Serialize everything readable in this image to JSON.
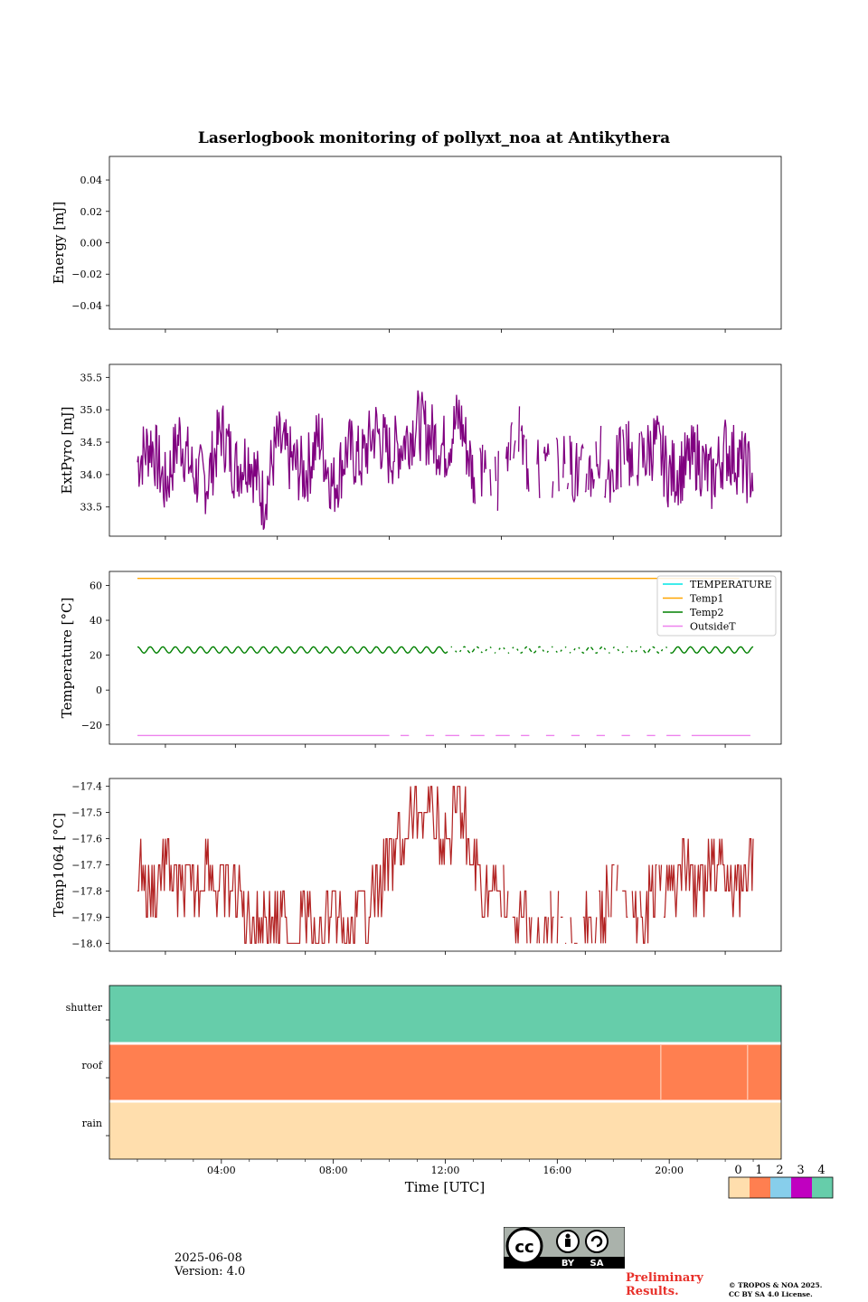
{
  "title": "Laserlogbook monitoring of pollyxt_noa at Antikythera",
  "xlabel": "Time [UTC]",
  "xticks": [
    "04:00",
    "08:00",
    "12:00",
    "16:00",
    "20:00"
  ],
  "date": "2025-06-08",
  "version": "Version: 4.0",
  "preliminary": [
    "Preliminary",
    "Results."
  ],
  "copyright": [
    "© TROPOS & NOA 2025.",
    "CC BY SA 4.0 License."
  ],
  "cc_badge": {
    "left": "BY",
    "right": "SA"
  },
  "colors": {
    "energy": "#800080",
    "extpyro": "#800080",
    "temperature": "#00e5e5",
    "temp1": "#ffa500",
    "temp2": "#008000",
    "outsidet": "#ee82ee",
    "temp1064": "#b22222",
    "status": [
      "#ffdead",
      "#ff7f50",
      "#87ceeb",
      "#c000c0",
      "#66cdaa"
    ]
  },
  "status_scale": [
    "0",
    "1",
    "2",
    "3",
    "4"
  ],
  "chart_data": [
    {
      "type": "line",
      "ylabel": "Energy [mJ]",
      "yticks": [
        "0.04",
        "0.02",
        "0.00",
        "−0.02",
        "−0.04"
      ],
      "ylim": [
        -0.055,
        0.055
      ],
      "series": []
    },
    {
      "type": "line",
      "ylabel": "ExtPyro [mJ]",
      "yticks": [
        "35.5",
        "35.0",
        "34.5",
        "34.0",
        "33.5"
      ],
      "ylim": [
        33.05,
        35.7
      ],
      "x_hours": [
        1.0,
        1.5,
        2.0,
        2.5,
        3.0,
        3.5,
        4.0,
        4.5,
        5.0,
        5.5,
        6.0,
        6.5,
        7.0,
        7.5,
        8.0,
        8.5,
        9.0,
        9.5,
        10.0,
        10.5,
        11.0,
        11.5,
        12.0,
        12.5,
        13.0,
        13.5,
        14.0,
        14.5,
        15.0,
        15.5,
        16.0,
        16.5,
        17.0,
        17.5,
        18.0,
        18.5,
        19.0,
        19.5,
        20.0,
        20.5,
        21.0,
        21.5,
        22.0,
        22.5,
        23.0
      ],
      "series": [
        {
          "name": "ExtPyro",
          "values": [
            34.2,
            34.5,
            33.8,
            34.6,
            34.0,
            33.9,
            34.7,
            34.1,
            34.3,
            33.6,
            34.5,
            34.2,
            34.0,
            34.6,
            33.8,
            34.4,
            34.2,
            34.7,
            34.3,
            34.5,
            34.8,
            34.6,
            34.4,
            34.9,
            34.0,
            34.2,
            33.9,
            34.7,
            34.1,
            34.0,
            34.2,
            34.1,
            33.9,
            34.3,
            34.0,
            34.4,
            34.2,
            34.5,
            34.0,
            34.1,
            34.3,
            33.9,
            34.4,
            34.2,
            34.0
          ]
        }
      ]
    },
    {
      "type": "line",
      "ylabel": "Temperature [°C]",
      "yticks": [
        "60",
        "40",
        "20",
        "0",
        "−20"
      ],
      "ylim": [
        -31,
        68
      ],
      "series": [
        {
          "name": "TEMPERATURE",
          "values": []
        },
        {
          "name": "Temp1",
          "values": [
            64,
            64,
            64,
            64,
            64,
            64,
            64,
            64,
            64,
            64,
            64,
            64,
            64,
            64,
            64,
            64,
            64,
            64,
            64,
            64,
            64,
            64,
            64,
            64,
            64,
            64,
            64,
            64,
            64,
            64,
            64,
            64,
            64,
            64,
            64,
            64,
            64,
            64,
            64,
            64,
            64,
            64,
            64,
            64,
            64
          ]
        },
        {
          "name": "Temp2",
          "values": [
            23,
            23,
            23,
            23,
            23,
            23,
            23,
            23,
            23,
            23,
            23,
            23,
            23,
            23,
            23,
            23,
            23,
            23,
            23,
            23,
            23,
            23,
            23,
            23,
            23,
            23,
            23,
            23,
            23,
            23,
            23,
            23,
            23,
            23,
            23,
            23,
            23,
            23,
            23,
            23,
            23,
            23,
            23,
            23,
            23
          ]
        },
        {
          "name": "OutsideT",
          "values": [
            -26,
            -26,
            -26,
            -26,
            -26,
            -26,
            -26,
            -26,
            -26,
            -26,
            -26,
            -26,
            -26,
            -26,
            -26,
            -26,
            -26,
            -26,
            -26,
            -26,
            -26,
            -26,
            -26,
            -26,
            -26,
            -26,
            -26,
            -26,
            -26,
            -26,
            -26,
            -26,
            -26,
            -26,
            -26,
            -26,
            -26,
            -26,
            -26,
            -26,
            -26,
            -26,
            -26,
            -26,
            -26
          ]
        }
      ],
      "legend": "top-right"
    },
    {
      "type": "line",
      "ylabel": "Temp1064 [°C]",
      "yticks": [
        "−17.4",
        "−17.5",
        "−17.6",
        "−17.7",
        "−17.8",
        "−17.9",
        "−18.0"
      ],
      "ylim": [
        -18.03,
        -17.37
      ],
      "series": [
        {
          "name": "Temp1064",
          "values": [
            -17.7,
            -17.8,
            -17.7,
            -17.8,
            -17.8,
            -17.7,
            -17.8,
            -17.8,
            -17.9,
            -17.9,
            -17.9,
            -18.0,
            -17.9,
            -18.0,
            -17.9,
            -18.0,
            -17.9,
            -17.8,
            -17.7,
            -17.6,
            -17.5,
            -17.5,
            -17.6,
            -17.5,
            -17.7,
            -17.8,
            -17.8,
            -17.9,
            -17.9,
            -18.0,
            -17.9,
            -18.0,
            -17.9,
            -17.9,
            -17.8,
            -17.8,
            -17.9,
            -17.8,
            -17.8,
            -17.7,
            -17.8,
            -17.7,
            -17.7,
            -17.8,
            -17.7
          ]
        }
      ]
    },
    {
      "type": "heatmap",
      "rows": [
        "shutter",
        "roof",
        "rain"
      ],
      "row_status": [
        4,
        1,
        0
      ]
    }
  ]
}
